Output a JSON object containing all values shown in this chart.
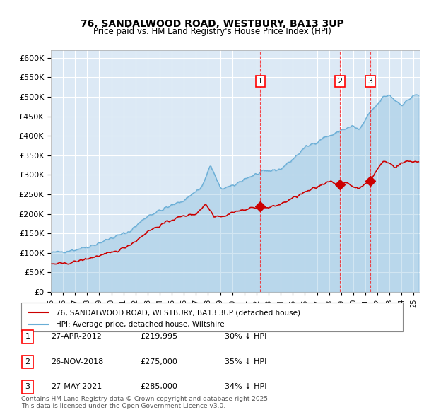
{
  "title": "76, SANDALWOOD ROAD, WESTBURY, BA13 3UP",
  "subtitle": "Price paid vs. HM Land Registry's House Price Index (HPI)",
  "background_color": "#dce9f5",
  "plot_bg_color": "#dce9f5",
  "hpi_color": "#6aaed6",
  "price_color": "#cc0000",
  "grid_color": "#ffffff",
  "ylim": [
    0,
    620000
  ],
  "ytick_labels": [
    "£0",
    "£50K",
    "£100K",
    "£150K",
    "£200K",
    "£250K",
    "£300K",
    "£350K",
    "£400K",
    "£450K",
    "£500K",
    "£550K",
    "£600K"
  ],
  "ytick_values": [
    0,
    50000,
    100000,
    150000,
    200000,
    250000,
    300000,
    350000,
    400000,
    450000,
    500000,
    550000,
    600000
  ],
  "sales": [
    {
      "label": "1",
      "date": "27-APR-2012",
      "year": 2012.32,
      "price": 219995,
      "pct": "30% ↓ HPI"
    },
    {
      "label": "2",
      "date": "26-NOV-2018",
      "year": 2018.9,
      "price": 275000,
      "pct": "35% ↓ HPI"
    },
    {
      "label": "3",
      "date": "27-MAY-2021",
      "year": 2021.4,
      "price": 285000,
      "pct": "34% ↓ HPI"
    }
  ],
  "legend_label_price": "76, SANDALWOOD ROAD, WESTBURY, BA13 3UP (detached house)",
  "legend_label_hpi": "HPI: Average price, detached house, Wiltshire",
  "footer": "Contains HM Land Registry data © Crown copyright and database right 2025.\nThis data is licensed under the Open Government Licence v3.0.",
  "xmin": 1995.0,
  "xmax": 2025.5
}
